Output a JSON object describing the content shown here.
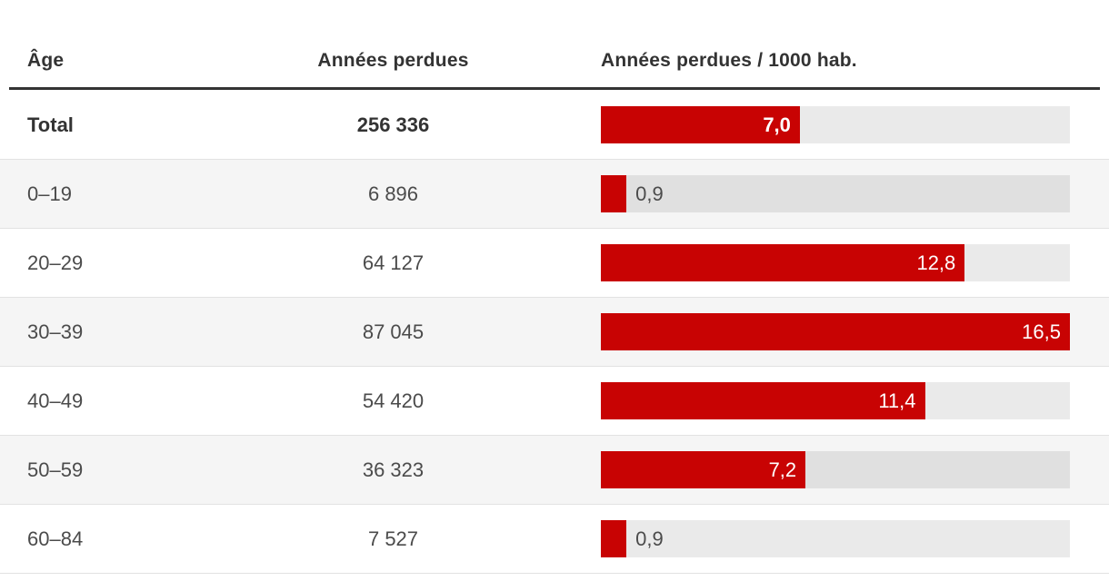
{
  "accent_color": "#c80303",
  "track_color": "#e8e8e8",
  "alt_row_color": "#f5f5f5",
  "table": {
    "headers": {
      "age": "Âge",
      "years": "Années perdues",
      "rate": "Années perdues / 1000 hab."
    },
    "rows": [
      {
        "age": "Total",
        "years": "256 336",
        "rate": 7.0,
        "rate_label": "7,0",
        "emphasis": true
      },
      {
        "age": "0–19",
        "years": "6 896",
        "rate": 0.9,
        "rate_label": "0,9",
        "emphasis": false
      },
      {
        "age": "20–29",
        "years": "64 127",
        "rate": 12.8,
        "rate_label": "12,8",
        "emphasis": false
      },
      {
        "age": "30–39",
        "years": "87 045",
        "rate": 16.5,
        "rate_label": "16,5",
        "emphasis": false
      },
      {
        "age": "40–49",
        "years": "54 420",
        "rate": 11.4,
        "rate_label": "11,4",
        "emphasis": false
      },
      {
        "age": "50–59",
        "years": "36 323",
        "rate": 7.2,
        "rate_label": "7,2",
        "emphasis": false
      },
      {
        "age": "60–84",
        "years": "7 527",
        "rate": 0.9,
        "rate_label": "0,9",
        "emphasis": false
      }
    ]
  },
  "chart_data": {
    "type": "bar",
    "orientation": "horizontal",
    "title": "",
    "columns": [
      "Âge",
      "Années perdues",
      "Années perdues / 1000 hab."
    ],
    "categories": [
      "Total",
      "0–19",
      "20–29",
      "30–39",
      "40–49",
      "50–59",
      "60–84"
    ],
    "series": [
      {
        "name": "Années perdues",
        "values": [
          256336,
          6896,
          64127,
          87045,
          54420,
          36323,
          7527
        ]
      },
      {
        "name": "Années perdues / 1000 hab.",
        "values": [
          7.0,
          0.9,
          12.8,
          16.5,
          11.4,
          7.2,
          0.9
        ]
      }
    ],
    "xlim": [
      0,
      16.5
    ],
    "grid": false,
    "legend": false,
    "bar_color": "#c80303",
    "value_label_decimal_separator": ","
  }
}
